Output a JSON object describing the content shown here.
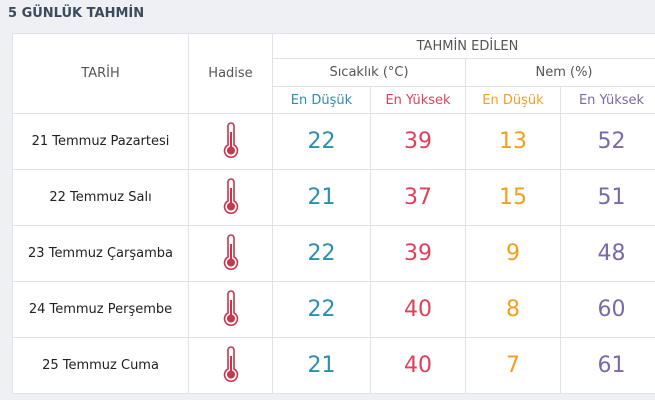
{
  "header": {
    "title": "5 GÜNLÜK TAHMİN"
  },
  "table": {
    "columns": {
      "date": "TARİH",
      "event": "Hadise",
      "forecast": "TAHMİN EDİLEN",
      "temperature": "Sıcaklık (°C)",
      "humidity": "Nem (%)",
      "temp_low": "En Düşük",
      "temp_high": "En Yüksek",
      "hum_low": "En Düşük",
      "hum_high": "En Yüksek"
    },
    "rows": [
      [
        "21 Temmuz Pazartesi",
        22,
        39,
        13,
        52
      ],
      [
        "22 Temmuz Salı",
        21,
        37,
        15,
        51
      ],
      [
        "23 Temmuz Çarşamba",
        22,
        39,
        9,
        48
      ],
      [
        "24 Temmuz Perşembe",
        22,
        40,
        8,
        60
      ],
      [
        "25 Temmuz Cuma",
        21,
        40,
        7,
        61
      ]
    ]
  }
}
